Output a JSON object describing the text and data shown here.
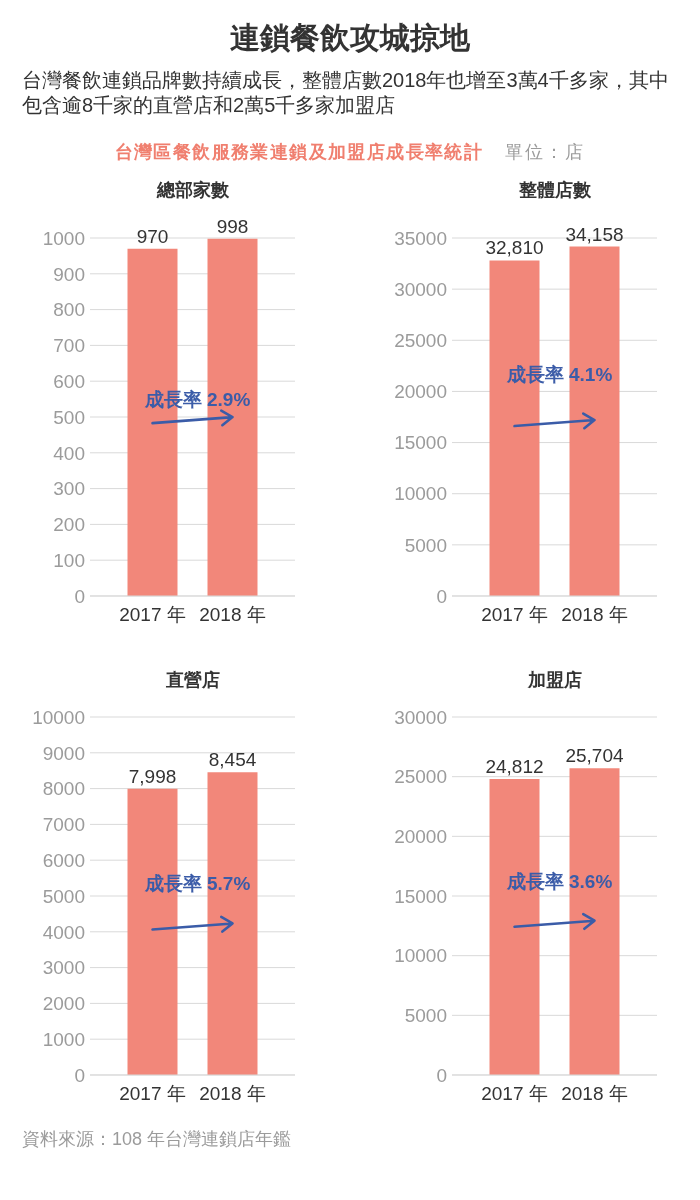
{
  "chart_data": [
    {
      "type": "other",
      "title": "連鎖餐飲攻城掠地",
      "subtitle": "台灣餐飲連鎖品牌數持續成長，整體店數2018年也增至3萬4千多家，其中包含逾8千家的直營店和2萬5千多家加盟店",
      "annotations": [
        "台灣區餐飲服務業連鎖及加盟店成長率統計",
        "單位：店"
      ]
    },
    {
      "type": "bar",
      "title": "總部家數",
      "categories": [
        "2017 年",
        "2018 年"
      ],
      "values": [
        970,
        998
      ],
      "color": "#f2877a",
      "ylim": [
        0,
        1000
      ],
      "yticks": [
        0,
        100,
        200,
        300,
        400,
        500,
        600,
        700,
        800,
        900,
        1000
      ],
      "grid": "y",
      "value_labels": [
        "970",
        "998"
      ],
      "annotations": [
        "成長率 2.9%"
      ]
    },
    {
      "type": "bar",
      "title": "整體店數",
      "categories": [
        "2017 年",
        "2018 年"
      ],
      "values": [
        32810,
        34158
      ],
      "color": "#f2877a",
      "ylim": [
        0,
        35000
      ],
      "yticks": [
        0,
        5000,
        10000,
        15000,
        20000,
        25000,
        30000,
        35000
      ],
      "grid": "y",
      "value_labels": [
        "32,810",
        "34,158"
      ],
      "annotations": [
        "成長率 4.1%"
      ]
    },
    {
      "type": "bar",
      "title": "直營店",
      "categories": [
        "2017 年",
        "2018 年"
      ],
      "values": [
        7998,
        8454
      ],
      "color": "#f2877a",
      "ylim": [
        0,
        10000
      ],
      "yticks": [
        0,
        1000,
        2000,
        3000,
        4000,
        5000,
        6000,
        7000,
        8000,
        9000,
        10000
      ],
      "grid": "y",
      "value_labels": [
        "7,998",
        "8,454"
      ],
      "annotations": [
        "成長率 5.7%"
      ]
    },
    {
      "type": "bar",
      "title": "加盟店",
      "categories": [
        "2017 年",
        "2018 年"
      ],
      "values": [
        24812,
        25704
      ],
      "color": "#f2877a",
      "ylim": [
        0,
        30000
      ],
      "yticks": [
        0,
        5000,
        10000,
        15000,
        20000,
        25000,
        30000
      ],
      "grid": "y",
      "value_labels": [
        "24,812",
        "25,704"
      ],
      "annotations": [
        "成長率 3.6%"
      ]
    },
    {
      "type": "other",
      "annotations": [
        "資料來源：108 年台灣連鎖店年鑑"
      ]
    }
  ]
}
